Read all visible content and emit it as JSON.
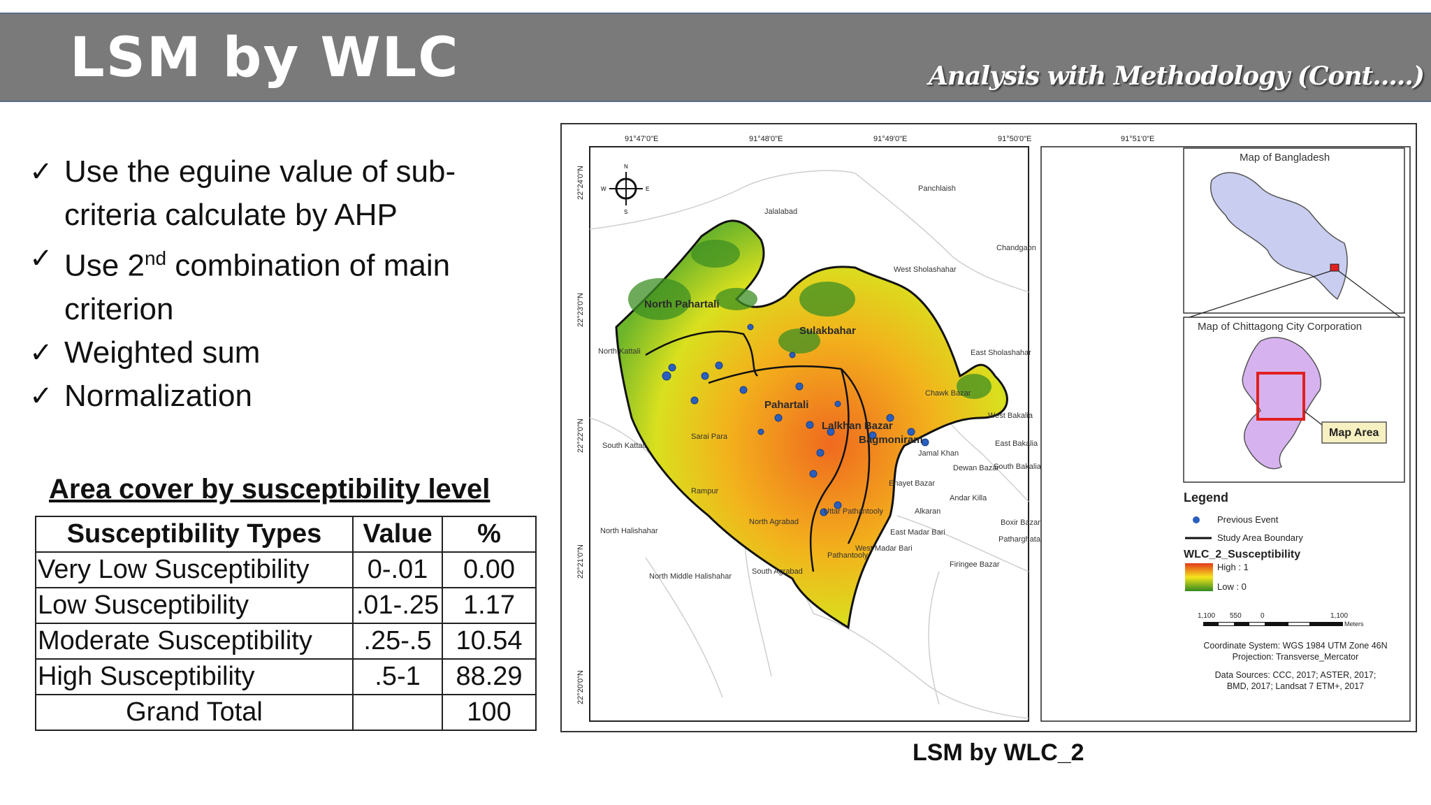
{
  "header": {
    "title": "LSM by WLC",
    "subtitle": "Analysis with Methodology (Cont.....)"
  },
  "bullets": [
    {
      "text": "Use the eguine value of sub-",
      "cont": "criteria calculate by AHP"
    },
    {
      "pre": "Use 2",
      "sup": "nd",
      "post": " combination of main",
      "cont": "criterion"
    },
    {
      "text": "Weighted sum"
    },
    {
      "text": "Normalization"
    }
  ],
  "table": {
    "title": "Area cover by susceptibility level",
    "headers": [
      "Susceptibility Types",
      "Value",
      "%"
    ],
    "rows": [
      [
        "Very Low Susceptibility",
        "0-.01",
        "0.00"
      ],
      [
        "Low Susceptibility",
        ".01-.25",
        "1.17"
      ],
      [
        "Moderate Susceptibility",
        ".25-.5",
        "10.54"
      ],
      [
        "High Susceptibility",
        ".5-1",
        "88.29"
      ],
      [
        "Grand Total",
        "",
        "100"
      ]
    ]
  },
  "map": {
    "caption": "LSM by WLC_2",
    "lon_labels": [
      "91°47'0\"E",
      "91°48'0\"E",
      "91°49'0\"E",
      "91°50'0\"E",
      "91°51'0\"E"
    ],
    "lat_labels": [
      "22°24'0\"N",
      "22°23'0\"N",
      "22°22'0\"N",
      "22°21'0\"N",
      "22°20'0\"N"
    ],
    "compass": {
      "n": "N",
      "s": "S",
      "e": "E",
      "w": "W"
    },
    "place_labels": {
      "north_pahartali": "North Pahartali",
      "sulakbahar": "Sulakbahar",
      "pahartali": "Pahartali",
      "lalkhan_bazar": "Lalkhan Bazar",
      "bagmoniram": "Bagmoniram",
      "panchlaish": "Panchlaish",
      "jalalabad": "Jalalabad",
      "chandgaon": "Chandgaon",
      "west_sholashahar": "West Sholashahar",
      "north_kattali": "North Kattali",
      "east_sholashahar": "East Sholashahar",
      "chawk_bazar": "Chawk Bazar",
      "west_bakalia": "West Bakalia",
      "south_kattali": "South Kattali",
      "sarai_para": "Sarai Para",
      "east_bakalia": "East Bakalia",
      "jamal_khan": "Jamal Khan",
      "dewan_bazar": "Dewan Bazar",
      "south_bakalia": "South Bakalia",
      "rampur": "Rampur",
      "enayet_bazar": "Enayet Bazar",
      "andar_killa": "Andar Killa",
      "uttar_pathantooly": "Uttar Pathantooly",
      "alkaran": "Alkaran",
      "north_agrabad": "North Agrabad",
      "boxir_bazar": "Boxir Bazar",
      "north_halishahar": "North Halishahar",
      "east_madar_bari": "East Madar Bari",
      "patharghata": "Patharghata",
      "west_madar_bari": "West Madar Bari",
      "pathantooly": "Pathantooly",
      "firingee_bazar": "Firingee Bazar",
      "south_agrabad": "South Agrabad",
      "north_middle_halishahar": "North Middle Halishahar"
    },
    "inset1_title": "Map of Bangladesh",
    "inset2_title": "Map of Chittagong City Corporation",
    "map_area_label": "Map Area",
    "legend": {
      "title": "Legend",
      "previous_event": "Previous Event",
      "boundary": "Study Area Boundary",
      "layer_name": "WLC_2_Susceptibility",
      "high": "High : 1",
      "low": "Low : 0",
      "scale_labels": [
        "1,100",
        "550",
        "0",
        "1,100"
      ],
      "scale_unit": "Meters",
      "coord_system": "Coordinate System:  WGS 1984 UTM Zone 46N",
      "projection": "Projection: Transverse_Mercator",
      "sources1": "Data Sources: CCC, 2017; ASTER, 2017;",
      "sources2": "BMD, 2017;  Landsat 7 ETM+, 2017"
    },
    "colors": {
      "high": "#e8451e",
      "mid": "#f5e51c",
      "low": "#2f8a1e",
      "event": "#2a5fbf",
      "inset_fill": "#c9cdf0",
      "ccc_fill": "#d6b3ef"
    }
  }
}
